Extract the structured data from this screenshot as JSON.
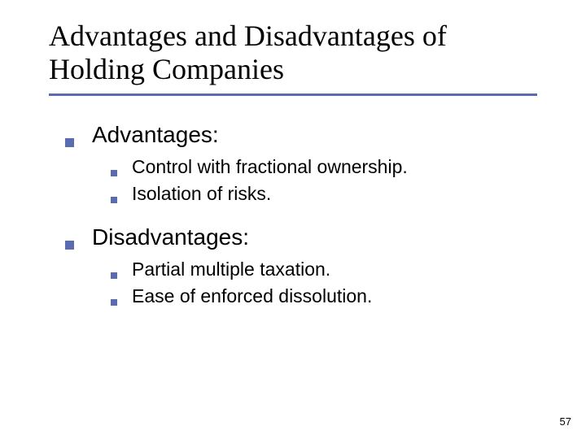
{
  "title": "Advantages and Disadvantages of Holding Companies",
  "sections": [
    {
      "heading": "Advantages:",
      "items": [
        "Control with fractional ownership.",
        "Isolation of risks."
      ]
    },
    {
      "heading": "Disadvantages:",
      "items": [
        "Partial multiple taxation.",
        "Ease of enforced dissolution."
      ]
    }
  ],
  "page_number": "57",
  "colors": {
    "accent": "#5b6bb0",
    "text": "#000000",
    "background": "#ffffff"
  },
  "fonts": {
    "title_family": "Times New Roman",
    "body_family": "Verdana",
    "title_size_pt": 36,
    "lvl1_size_pt": 28,
    "lvl2_size_pt": 23
  }
}
